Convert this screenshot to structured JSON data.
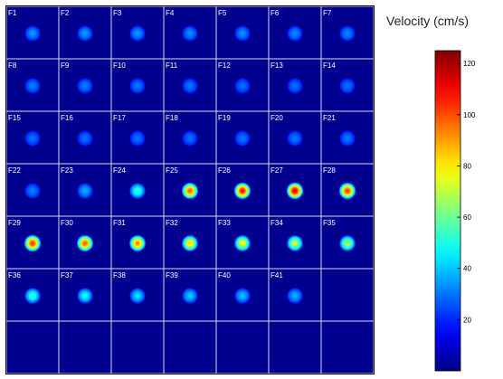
{
  "chart_data": {
    "type": "heatmap",
    "subtype": "image-montage",
    "grid": {
      "columns": 7,
      "rows": 7
    },
    "background_color": "#00008f",
    "grid_line_color": "#d8d8e8",
    "frames": [
      {
        "label": "F1",
        "peak": 35
      },
      {
        "label": "F2",
        "peak": 36
      },
      {
        "label": "F3",
        "peak": 35
      },
      {
        "label": "F4",
        "peak": 34
      },
      {
        "label": "F5",
        "peak": 34
      },
      {
        "label": "F6",
        "peak": 33
      },
      {
        "label": "F7",
        "peak": 33
      },
      {
        "label": "F8",
        "peak": 32
      },
      {
        "label": "F9",
        "peak": 32
      },
      {
        "label": "F10",
        "peak": 31
      },
      {
        "label": "F11",
        "peak": 31
      },
      {
        "label": "F12",
        "peak": 30
      },
      {
        "label": "F13",
        "peak": 30
      },
      {
        "label": "F14",
        "peak": 30
      },
      {
        "label": "F15",
        "peak": 30
      },
      {
        "label": "F16",
        "peak": 30
      },
      {
        "label": "F17",
        "peak": 30
      },
      {
        "label": "F18",
        "peak": 30
      },
      {
        "label": "F19",
        "peak": 31
      },
      {
        "label": "F20",
        "peak": 31
      },
      {
        "label": "F21",
        "peak": 31
      },
      {
        "label": "F22",
        "peak": 32
      },
      {
        "label": "F23",
        "peak": 38
      },
      {
        "label": "F24",
        "peak": 55
      },
      {
        "label": "F25",
        "peak": 100
      },
      {
        "label": "F26",
        "peak": 110
      },
      {
        "label": "F27",
        "peak": 115
      },
      {
        "label": "F28",
        "peak": 105
      },
      {
        "label": "F29",
        "peak": 105
      },
      {
        "label": "F30",
        "peak": 100
      },
      {
        "label": "F31",
        "peak": 95
      },
      {
        "label": "F32",
        "peak": 85
      },
      {
        "label": "F33",
        "peak": 80
      },
      {
        "label": "F34",
        "peak": 75
      },
      {
        "label": "F35",
        "peak": 70
      },
      {
        "label": "F36",
        "peak": 55
      },
      {
        "label": "F37",
        "peak": 50
      },
      {
        "label": "F38",
        "peak": 45
      },
      {
        "label": "F39",
        "peak": 42
      },
      {
        "label": "F40",
        "peak": 40
      },
      {
        "label": "F41",
        "peak": 38
      }
    ],
    "colorbar": {
      "title": "Velocity (cm/s)",
      "range": [
        0,
        125
      ],
      "ticks": [
        20,
        40,
        60,
        80,
        100,
        120
      ],
      "colormap": "jet"
    }
  }
}
